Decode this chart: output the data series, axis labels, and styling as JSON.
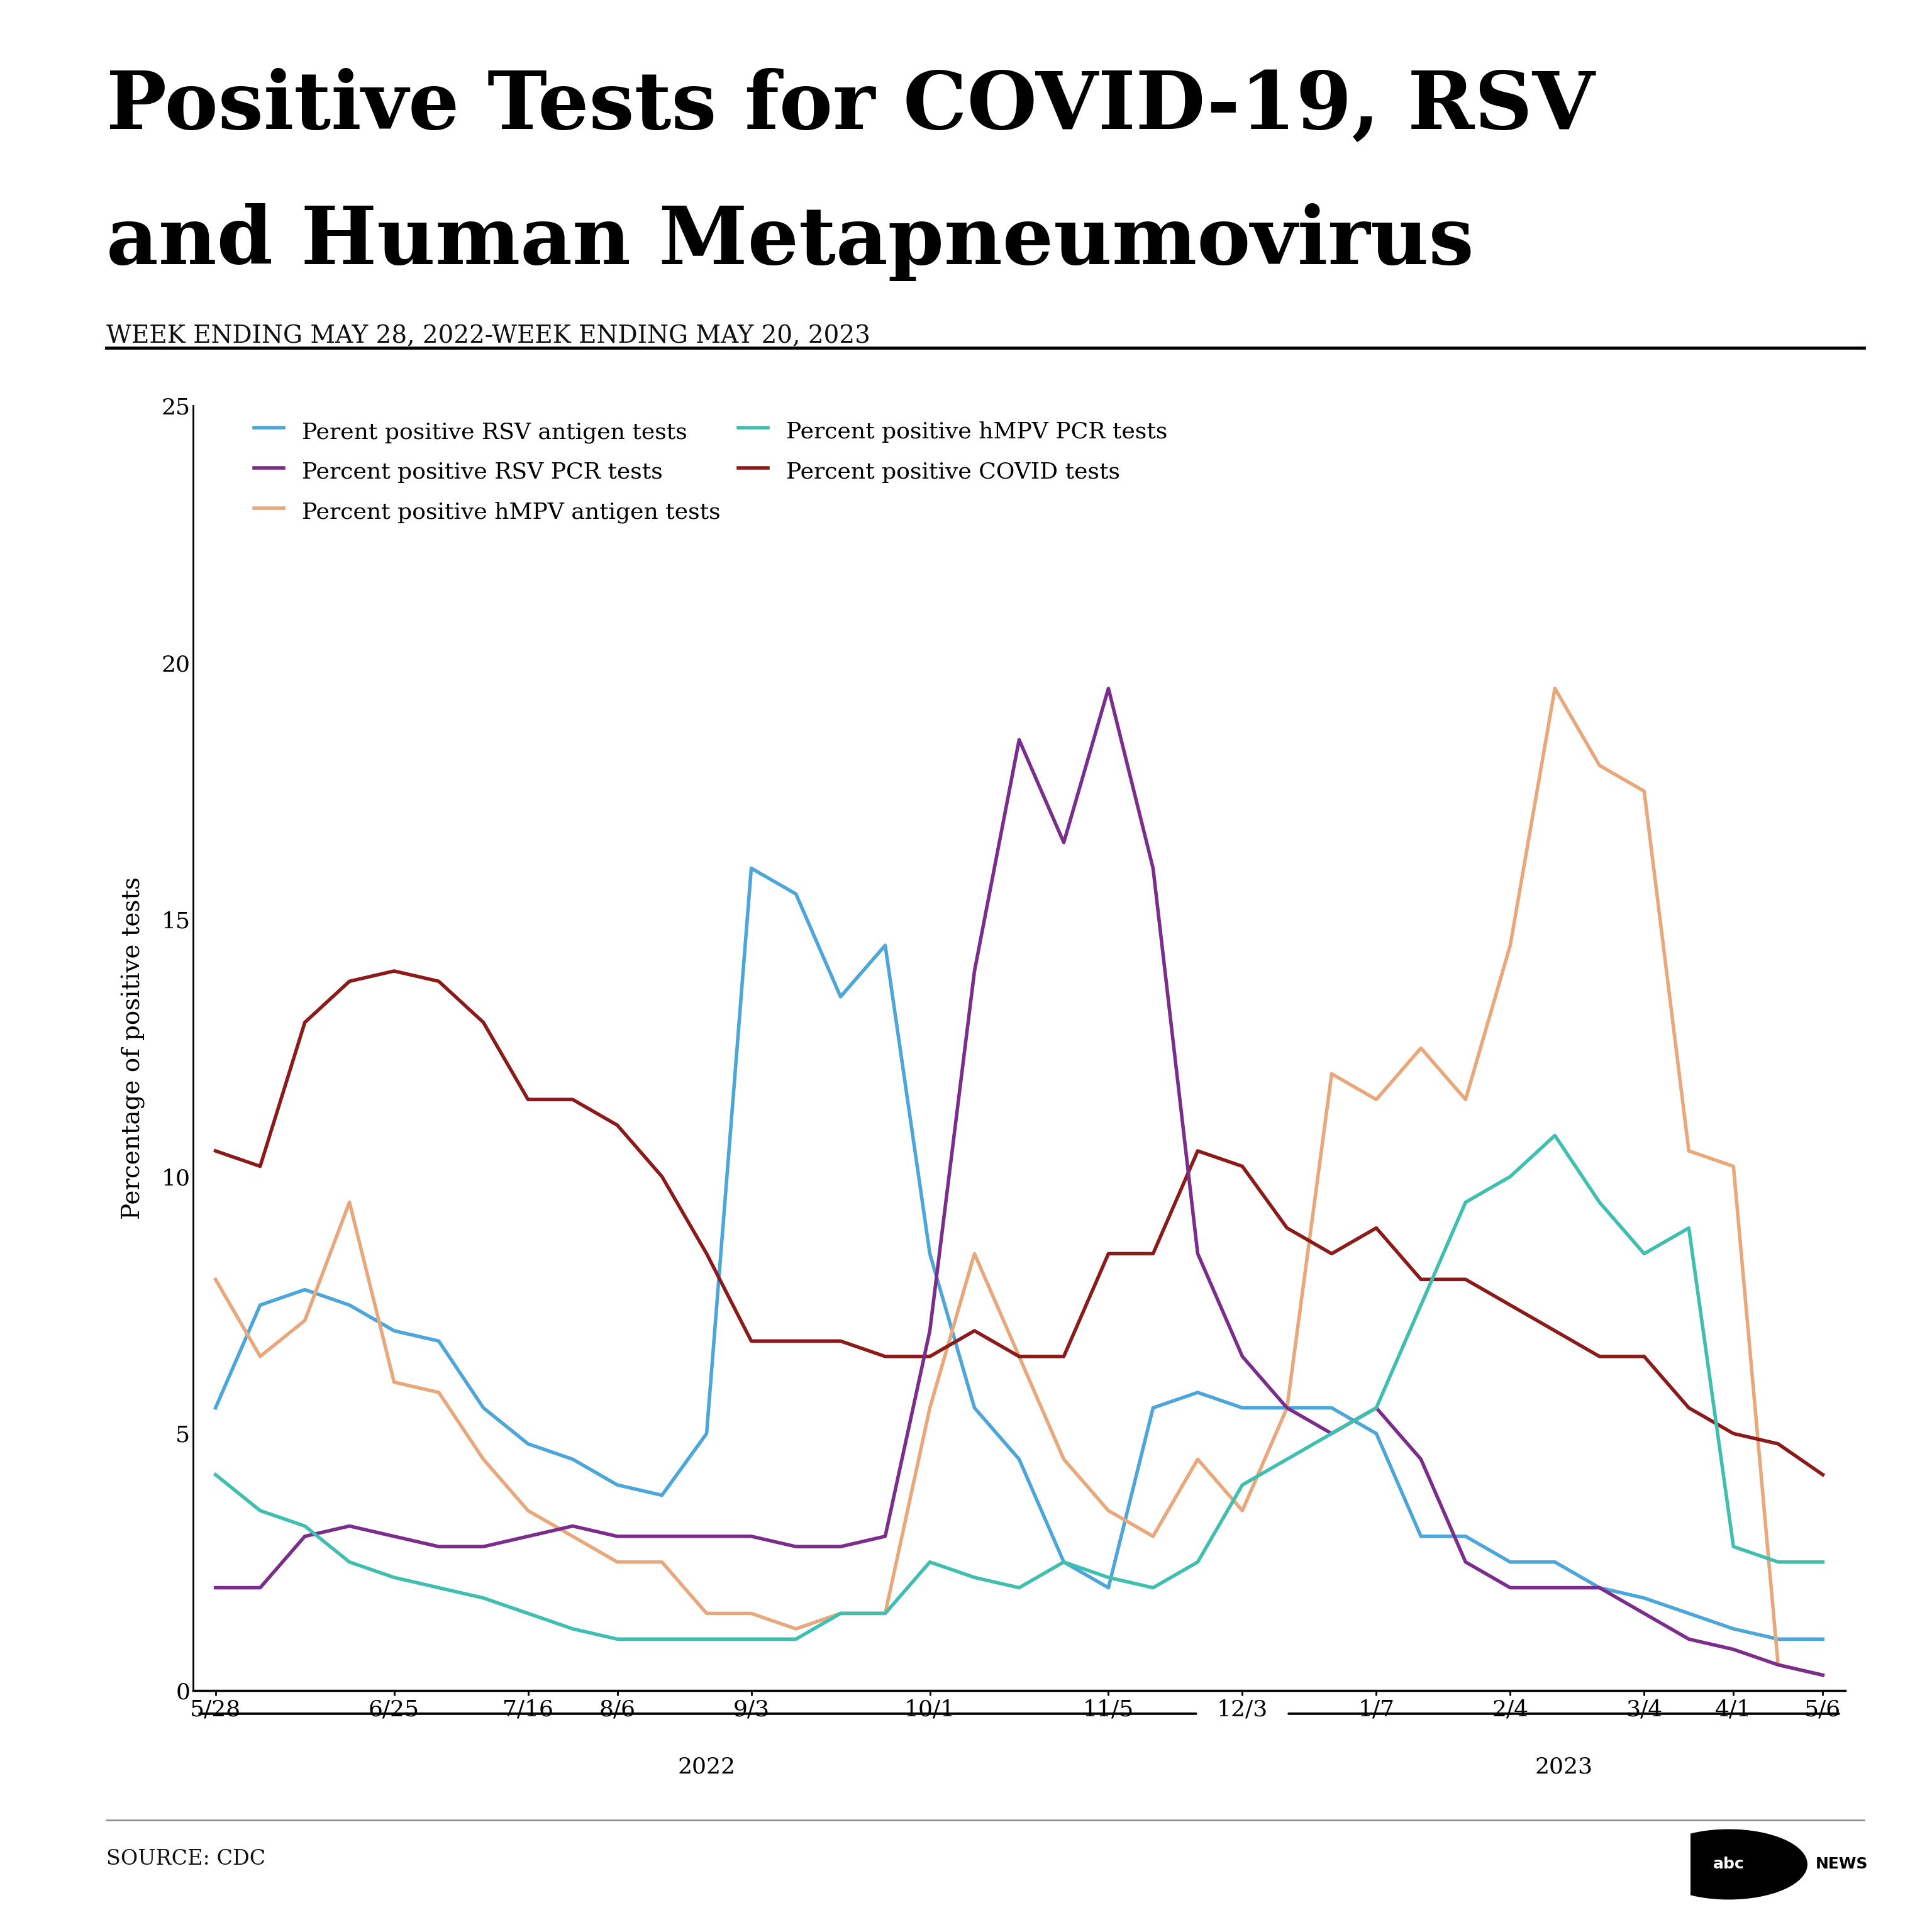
{
  "title_line1": "Positive Tests for COVID-19, RSV",
  "title_line2": "and Human Metapneumovirus",
  "subtitle": "WEEK ENDING MAY 28, 2022-WEEK ENDING MAY 20, 2023",
  "ylabel": "Percentage of positive tests",
  "source": "SOURCE: CDC",
  "ylim": [
    0,
    25
  ],
  "yticks": [
    0,
    5,
    10,
    15,
    20,
    25
  ],
  "n_points": 37,
  "x_tick_indices": [
    0,
    4,
    7,
    9,
    12,
    16,
    20,
    23,
    26,
    29,
    32,
    34,
    36
  ],
  "x_labels": [
    "5/28",
    "6/25",
    "7/16",
    "8/6",
    "9/3",
    "10/1",
    "11/5",
    "12/3",
    "1/7",
    "2/4",
    "3/4",
    "4/1",
    "5/6"
  ],
  "year_2022_range": [
    -0.5,
    22.5
  ],
  "year_2023_range": [
    23.5,
    36.5
  ],
  "series": {
    "rsv_antigen": {
      "label": "Perent positive RSV antigen tests",
      "color": "#4DA6D9",
      "values": [
        5.5,
        7.5,
        7.8,
        7.5,
        7.0,
        6.8,
        5.5,
        4.8,
        4.5,
        4.0,
        3.8,
        5.0,
        16.0,
        15.5,
        13.5,
        14.5,
        8.5,
        5.5,
        4.5,
        2.5,
        2.0,
        5.5,
        5.8,
        5.5,
        5.5,
        5.5,
        5.0,
        3.0,
        3.0,
        2.5,
        2.5,
        2.0,
        1.8,
        1.5,
        1.2,
        1.0,
        1.0
      ]
    },
    "hmpv_antigen": {
      "label": "Percent positive hMPV antigen tests",
      "color": "#E8A87C",
      "values": [
        8.0,
        6.5,
        7.2,
        9.5,
        6.0,
        5.8,
        4.5,
        3.5,
        3.0,
        2.5,
        2.5,
        1.5,
        1.5,
        1.2,
        1.5,
        1.5,
        5.5,
        8.5,
        6.5,
        4.5,
        3.5,
        3.0,
        4.5,
        3.5,
        5.5,
        12.0,
        11.5,
        12.5,
        11.5,
        14.5,
        19.5,
        18.0,
        17.5,
        10.5,
        10.2,
        0.5,
        0.3
      ]
    },
    "covid": {
      "label": "Percent positive COVID tests",
      "color": "#8B1A1A",
      "values": [
        10.5,
        10.2,
        13.0,
        13.8,
        14.0,
        13.8,
        13.0,
        11.5,
        11.5,
        11.0,
        10.0,
        8.5,
        6.8,
        6.8,
        6.8,
        6.5,
        6.5,
        7.0,
        6.5,
        6.5,
        8.5,
        8.5,
        10.5,
        10.2,
        9.0,
        8.5,
        9.0,
        8.0,
        8.0,
        7.5,
        7.0,
        6.5,
        6.5,
        5.5,
        5.0,
        4.8,
        4.2
      ]
    },
    "rsv_pcr": {
      "label": "Percent positive RSV PCR tests",
      "color": "#7B2D8B",
      "values": [
        2.0,
        2.0,
        3.0,
        3.2,
        3.0,
        2.8,
        2.8,
        3.0,
        3.2,
        3.0,
        3.0,
        3.0,
        3.0,
        2.8,
        2.8,
        3.0,
        7.0,
        14.0,
        18.5,
        16.5,
        19.5,
        16.0,
        8.5,
        6.5,
        5.5,
        5.0,
        5.5,
        4.5,
        2.5,
        2.0,
        2.0,
        2.0,
        1.5,
        1.0,
        0.8,
        0.5,
        0.3
      ]
    },
    "hmpv_pcr": {
      "label": "Percent positive hMPV PCR tests",
      "color": "#40BFB0",
      "values": [
        4.2,
        3.5,
        3.2,
        2.5,
        2.2,
        2.0,
        1.8,
        1.5,
        1.2,
        1.0,
        1.0,
        1.0,
        1.0,
        1.0,
        1.5,
        1.5,
        2.5,
        2.2,
        2.0,
        2.5,
        2.2,
        2.0,
        2.5,
        4.0,
        4.5,
        5.0,
        5.5,
        7.5,
        9.5,
        10.0,
        10.8,
        9.5,
        8.5,
        9.0,
        2.8,
        2.5,
        2.5
      ]
    }
  }
}
